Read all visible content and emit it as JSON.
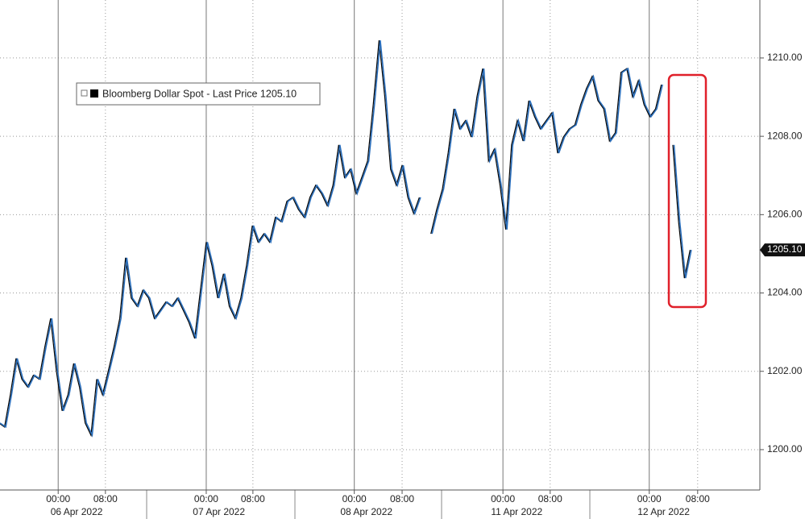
{
  "chart_data": {
    "type": "line",
    "series": [
      {
        "name": "Bloomberg Dollar Spot - Last Price 1205.10",
        "color": "#2a6ebb",
        "values": [
          1200.68,
          1200.58,
          1201.4,
          1202.33,
          1201.8,
          1201.6,
          1201.9,
          1201.8,
          1202.63,
          1203.35,
          1202.0,
          1200.99,
          1201.4,
          1202.2,
          1201.6,
          1200.68,
          1200.37,
          1201.8,
          1201.4,
          1202.0,
          1202.63,
          1203.35,
          1204.9,
          1203.87,
          1203.66,
          1204.07,
          1203.87,
          1203.35,
          1203.56,
          1203.77,
          1203.66,
          1203.87,
          1203.56,
          1203.25,
          1202.84,
          1204.07,
          1205.3,
          1204.7,
          1203.87,
          1204.49,
          1203.66,
          1203.35,
          1203.87,
          1204.7,
          1205.72,
          1205.3,
          1205.51,
          1205.3,
          1205.93,
          1205.82,
          1206.34,
          1206.44,
          1206.13,
          1205.93,
          1206.44,
          1206.75,
          1206.54,
          1206.23,
          1206.75,
          1207.78,
          1206.95,
          1207.16,
          1206.54,
          1206.95,
          1207.37,
          1208.81,
          1210.45,
          1209.01,
          1207.16,
          1206.75,
          1207.26,
          1206.44,
          1206.03,
          1206.44,
          null,
          1205.51,
          1206.13,
          1206.65,
          1207.57,
          1208.7,
          1208.19,
          1208.4,
          1207.98,
          1209.01,
          1209.73,
          1207.37,
          1207.67,
          1206.75,
          1205.62,
          1207.78,
          1208.4,
          1207.88,
          1208.91,
          1208.5,
          1208.19,
          1208.4,
          1208.6,
          1207.57,
          1207.98,
          1208.19,
          1208.29,
          1208.81,
          1209.22,
          1209.53,
          1208.91,
          1208.7,
          1207.88,
          1208.09,
          1209.63,
          1209.73,
          1209.01,
          1209.42,
          1208.81,
          1208.5,
          1208.7,
          1209.32,
          null,
          1207.78,
          1205.82,
          1204.38,
          1205.1
        ]
      }
    ],
    "xlim": [
      0,
      131.9
    ],
    "xticks": [
      {
        "value": 10.1,
        "label": "00:00"
      },
      {
        "value": 18.3,
        "label": "08:00"
      },
      {
        "value": 35.8,
        "label": "00:00"
      },
      {
        "value": 43.9,
        "label": "08:00"
      },
      {
        "value": 61.5,
        "label": "00:00"
      },
      {
        "value": 69.8,
        "label": "08:00"
      },
      {
        "value": 87.3,
        "label": "00:00"
      },
      {
        "value": 95.5,
        "label": "08:00"
      },
      {
        "value": 112.7,
        "label": "00:00"
      },
      {
        "value": 121.1,
        "label": "08:00"
      }
    ],
    "xdates": [
      {
        "value": 13.3,
        "label": "06 Apr 2022"
      },
      {
        "value": 38.0,
        "label": "07 Apr 2022"
      },
      {
        "value": 63.6,
        "label": "08 Apr 2022"
      },
      {
        "value": 89.7,
        "label": "11 Apr 2022"
      },
      {
        "value": 115.2,
        "label": "12 Apr 2022"
      }
    ],
    "ylim": [
      1198.97,
      1211.48
    ],
    "yticks": [
      {
        "value": 1200,
        "label": "1200.00"
      },
      {
        "value": 1202,
        "label": "1202.00"
      },
      {
        "value": 1204,
        "label": "1204.00"
      },
      {
        "value": 1206,
        "label": "1206.00"
      },
      {
        "value": 1208,
        "label": "1208.00"
      },
      {
        "value": 1210,
        "label": "1210.00"
      }
    ],
    "last_price": {
      "value": 1205.1,
      "label": "1205.10"
    },
    "grid": true
  }
}
